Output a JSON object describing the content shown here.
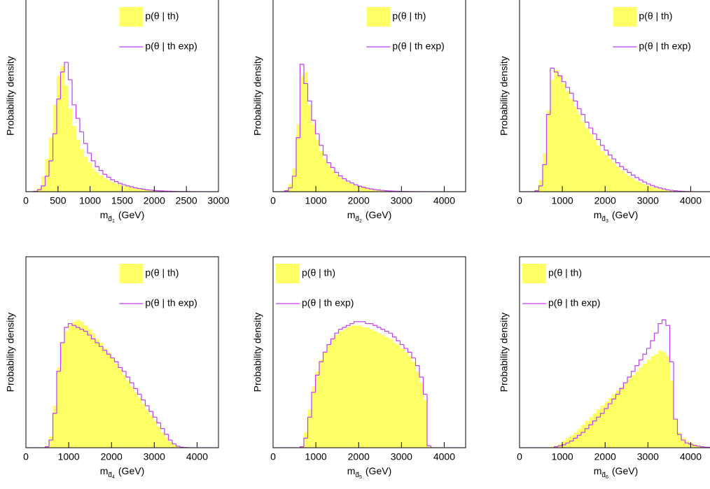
{
  "chart_data": [
    {
      "type": "histogram",
      "ylabel": "Probability density",
      "xlabel_symbol": "m",
      "xlabel_subscript": "d̃",
      "xlabel_index": "1",
      "xlabel_unit": "(GeV)",
      "legend": "upper right",
      "xlim": [
        0,
        3000
      ],
      "xticks": [
        0,
        500,
        1000,
        1500,
        2000,
        2500,
        3000
      ],
      "ylim": [
        0,
        100
      ],
      "bins": [
        0,
        60,
        120,
        180,
        240,
        300,
        360,
        420,
        480,
        540,
        600,
        660,
        720,
        780,
        840,
        900,
        960,
        1020,
        1080,
        1140,
        1200,
        1260,
        1320,
        1380,
        1440,
        1500,
        1560,
        1620,
        1680,
        1740,
        1800,
        1860,
        1920,
        1980,
        2040,
        2100,
        2160,
        2220,
        2280,
        2340,
        2400,
        2460,
        2520,
        2580,
        2640,
        2700,
        2760,
        2820,
        2880,
        2940,
        3000
      ],
      "series": [
        {
          "name": "p(θ | th)",
          "color": "#ffff66",
          "style": "filled",
          "values": [
            0,
            0,
            0.5,
            2,
            8,
            17,
            28,
            45,
            60,
            65,
            55,
            43,
            34,
            27,
            22,
            18,
            15,
            12,
            10,
            8.5,
            7,
            6,
            5,
            4.3,
            3.6,
            3,
            2.5,
            2.1,
            1.7,
            1.4,
            1.1,
            0.9,
            0.7,
            0.6,
            0.5,
            0.4,
            0.3,
            0.25,
            0.2,
            0.15,
            0.1,
            0.08,
            0.06,
            0.04,
            0.03,
            0.02,
            0.01,
            0,
            0,
            0
          ]
        },
        {
          "name": "p(θ | th exp)",
          "color": "#c23cf2",
          "style": "step",
          "values": [
            0,
            0,
            0.2,
            1,
            3,
            8,
            16,
            30,
            48,
            62,
            67,
            58,
            45,
            38,
            31,
            25,
            20,
            16,
            13,
            11,
            9,
            7.5,
            6.2,
            5.2,
            4.3,
            3.6,
            3,
            2.5,
            2,
            1.6,
            1.3,
            1,
            0.8,
            0.6,
            0.5,
            0.4,
            0.3,
            0.22,
            0.16,
            0.12,
            0.09,
            0.06,
            0.04,
            0.03,
            0.02,
            0.01,
            0,
            0,
            0,
            0
          ]
        }
      ]
    },
    {
      "type": "histogram",
      "ylabel": "Probability density",
      "xlabel_symbol": "m",
      "xlabel_subscript": "d̃",
      "xlabel_index": "2",
      "xlabel_unit": "(GeV)",
      "legend": "upper right",
      "xlim": [
        0,
        4500
      ],
      "xticks": [
        0,
        1000,
        2000,
        3000,
        4000
      ],
      "ylim": [
        0,
        100
      ],
      "bins": [
        0,
        90,
        180,
        270,
        360,
        450,
        540,
        630,
        720,
        810,
        900,
        990,
        1080,
        1170,
        1260,
        1350,
        1440,
        1530,
        1620,
        1710,
        1800,
        1890,
        1980,
        2070,
        2160,
        2250,
        2340,
        2430,
        2520,
        2610,
        2700,
        2790,
        2880,
        2970,
        3060,
        3150,
        3240,
        3330,
        3420,
        3510,
        3600,
        3690,
        3780,
        3870,
        3960,
        4050,
        4140,
        4230,
        4320,
        4410,
        4500
      ],
      "series": [
        {
          "name": "p(θ | th)",
          "color": "#ffff66",
          "style": "filled",
          "values": [
            0,
            0,
            0,
            1,
            4,
            12,
            35,
            60,
            62,
            45,
            35,
            27,
            21,
            17,
            14,
            11,
            9,
            7.5,
            6,
            5,
            4,
            3.2,
            2.6,
            2.1,
            1.7,
            1.3,
            1,
            0.8,
            0.6,
            0.45,
            0.35,
            0.25,
            0.2,
            0.15,
            0.1,
            0.07,
            0.05,
            0.03,
            0.02,
            0.01,
            0,
            0,
            0,
            0,
            0,
            0,
            0,
            0,
            0,
            0
          ]
        },
        {
          "name": "p(θ | th exp)",
          "color": "#c23cf2",
          "style": "step",
          "values": [
            0,
            0,
            0,
            0.5,
            2,
            8,
            28,
            66,
            56,
            47,
            37,
            30,
            24,
            19,
            15,
            12.5,
            10,
            8.2,
            6.7,
            5.5,
            4.5,
            3.6,
            2.9,
            2.3,
            1.8,
            1.4,
            1.1,
            0.85,
            0.65,
            0.5,
            0.38,
            0.28,
            0.2,
            0.15,
            0.1,
            0.07,
            0.05,
            0.03,
            0.02,
            0.01,
            0,
            0,
            0,
            0,
            0,
            0,
            0,
            0,
            0,
            0
          ]
        }
      ]
    },
    {
      "type": "histogram",
      "ylabel": "Probability density",
      "xlabel_symbol": "m",
      "xlabel_subscript": "d̃",
      "xlabel_index": "3",
      "xlabel_unit": "(GeV)",
      "legend": "upper right",
      "xlim": [
        0,
        4500
      ],
      "xticks": [
        0,
        1000,
        2000,
        3000,
        4000
      ],
      "ylim": [
        0,
        100
      ],
      "bins": [
        0,
        90,
        180,
        270,
        360,
        450,
        540,
        630,
        720,
        810,
        900,
        990,
        1080,
        1170,
        1260,
        1350,
        1440,
        1530,
        1620,
        1710,
        1800,
        1890,
        1980,
        2070,
        2160,
        2250,
        2340,
        2430,
        2520,
        2610,
        2700,
        2790,
        2880,
        2970,
        3060,
        3150,
        3240,
        3330,
        3420,
        3510,
        3600,
        3690,
        3780,
        3870,
        3960,
        4050,
        4140,
        4230,
        4320,
        4410,
        4500
      ],
      "series": [
        {
          "name": "p(θ | th)",
          "color": "#ffff66",
          "style": "filled",
          "values": [
            0,
            0,
            0,
            0,
            1,
            6,
            20,
            42,
            58,
            63,
            60,
            56,
            52,
            48,
            44,
            40,
            36,
            33,
            30,
            27,
            24,
            21,
            19,
            17,
            15,
            13,
            11,
            9.5,
            8,
            6.8,
            5.6,
            4.6,
            3.8,
            3,
            2.4,
            1.9,
            1.4,
            1,
            0.7,
            0.5,
            0.3,
            0.2,
            0.1,
            0.05,
            0,
            0,
            0,
            0,
            0,
            0
          ]
        },
        {
          "name": "p(θ | th exp)",
          "color": "#c23cf2",
          "style": "step",
          "values": [
            0,
            0,
            0,
            0,
            0.5,
            3,
            14,
            40,
            64,
            62,
            60,
            57,
            54,
            51,
            47,
            43,
            40,
            36,
            33,
            30,
            27,
            24,
            21.5,
            19,
            17,
            15,
            13,
            11.5,
            10,
            8.6,
            7.3,
            6.1,
            5,
            4,
            3.2,
            2.5,
            1.9,
            1.4,
            1,
            0.7,
            0.5,
            0.3,
            0.2,
            0.1,
            0.05,
            0,
            0,
            0,
            0,
            0
          ]
        }
      ]
    },
    {
      "type": "histogram",
      "ylabel": "Probability density",
      "xlabel_symbol": "m",
      "xlabel_subscript": "d̃",
      "xlabel_index": "4",
      "xlabel_unit": "(GeV)",
      "legend": "upper right",
      "xlim": [
        0,
        4500
      ],
      "xticks": [
        0,
        1000,
        2000,
        3000,
        4000
      ],
      "ylim": [
        0,
        100
      ],
      "bins": [
        0,
        90,
        180,
        270,
        360,
        450,
        540,
        630,
        720,
        810,
        900,
        990,
        1080,
        1170,
        1260,
        1350,
        1440,
        1530,
        1620,
        1710,
        1800,
        1890,
        1980,
        2070,
        2160,
        2250,
        2340,
        2430,
        2520,
        2610,
        2700,
        2790,
        2880,
        2970,
        3060,
        3150,
        3240,
        3330,
        3420,
        3510,
        3600,
        3690,
        3780,
        3870,
        3960,
        4050,
        4140,
        4230,
        4320,
        4410,
        4500
      ],
      "series": [
        {
          "name": "p(θ | th)",
          "color": "#ffff66",
          "style": "filled",
          "values": [
            0,
            0,
            0,
            0,
            0,
            1,
            6,
            22,
            42,
            55,
            61,
            64,
            66,
            67,
            66,
            64,
            62,
            60,
            57,
            55,
            52,
            50,
            47,
            44,
            41,
            38,
            35,
            32,
            29,
            26,
            23,
            20,
            17,
            14,
            11,
            8,
            5.5,
            3,
            1.5,
            0.6,
            0.2,
            0,
            0,
            0,
            0,
            0,
            0,
            0,
            0,
            0
          ]
        },
        {
          "name": "p(θ | th exp)",
          "color": "#c23cf2",
          "style": "step",
          "values": [
            0,
            0,
            0,
            0,
            0,
            0.5,
            4,
            18,
            40,
            55,
            63,
            65,
            64,
            63,
            62,
            61,
            59,
            57,
            55,
            53,
            51,
            49,
            47,
            45,
            42,
            40,
            37,
            34,
            31,
            28,
            25,
            22,
            19,
            16,
            13,
            10,
            7,
            4,
            2,
            0.8,
            0.3,
            0.1,
            0,
            0,
            0,
            0,
            0,
            0,
            0,
            0
          ]
        }
      ]
    },
    {
      "type": "histogram",
      "ylabel": "Probability density",
      "xlabel_symbol": "m",
      "xlabel_subscript": "d̃",
      "xlabel_index": "5",
      "xlabel_unit": "(GeV)",
      "legend": "upper left",
      "xlim": [
        0,
        4500
      ],
      "xticks": [
        0,
        1000,
        2000,
        3000,
        4000
      ],
      "ylim": [
        0,
        100
      ],
      "bins": [
        0,
        90,
        180,
        270,
        360,
        450,
        540,
        630,
        720,
        810,
        900,
        990,
        1080,
        1170,
        1260,
        1350,
        1440,
        1530,
        1620,
        1710,
        1800,
        1890,
        1980,
        2070,
        2160,
        2250,
        2340,
        2430,
        2520,
        2610,
        2700,
        2790,
        2880,
        2970,
        3060,
        3150,
        3240,
        3330,
        3420,
        3510,
        3600,
        3690,
        3780,
        3870,
        3960,
        4050,
        4140,
        4230,
        4320,
        4410,
        4500
      ],
      "series": [
        {
          "name": "p(θ | th)",
          "color": "#ffff66",
          "style": "filled",
          "values": [
            0,
            0,
            0,
            0,
            0,
            0,
            0,
            1,
            8,
            20,
            32,
            40,
            46,
            50,
            54,
            57,
            59,
            61,
            62,
            63,
            64,
            64,
            64,
            63,
            63,
            62,
            61,
            60,
            59,
            58,
            57,
            55,
            54,
            52,
            50,
            48,
            45,
            40,
            34,
            25,
            0.5,
            0,
            0,
            0,
            0,
            0,
            0,
            0,
            0,
            0
          ]
        },
        {
          "name": "p(θ | th exp)",
          "color": "#c23cf2",
          "style": "step",
          "values": [
            0,
            0,
            0,
            0,
            0,
            0,
            0,
            0.5,
            5,
            16,
            29,
            38,
            45,
            50,
            54,
            57,
            60,
            62,
            63,
            64,
            65,
            66,
            66,
            66,
            65,
            65,
            64,
            63,
            62,
            61,
            60,
            58,
            56,
            54,
            52,
            50,
            47,
            43,
            37,
            28,
            1,
            0,
            0,
            0,
            0,
            0,
            0,
            0,
            0,
            0
          ]
        }
      ]
    },
    {
      "type": "histogram",
      "ylabel": "Probability density",
      "xlabel_symbol": "m",
      "xlabel_subscript": "d̃",
      "xlabel_index": "6",
      "xlabel_unit": "(GeV)",
      "legend": "upper left",
      "xlim": [
        0,
        4500
      ],
      "xticks": [
        0,
        1000,
        2000,
        3000,
        4000
      ],
      "ylim": [
        0,
        100
      ],
      "bins": [
        0,
        90,
        180,
        270,
        360,
        450,
        540,
        630,
        720,
        810,
        900,
        990,
        1080,
        1170,
        1260,
        1350,
        1440,
        1530,
        1620,
        1710,
        1800,
        1890,
        1980,
        2070,
        2160,
        2250,
        2340,
        2430,
        2520,
        2610,
        2700,
        2790,
        2880,
        2970,
        3060,
        3150,
        3240,
        3330,
        3420,
        3510,
        3600,
        3690,
        3780,
        3870,
        3960,
        4050,
        4140,
        4230,
        4320,
        4410,
        4500
      ],
      "series": [
        {
          "name": "p(θ | th)",
          "color": "#ffff66",
          "style": "filled",
          "values": [
            0,
            0,
            0,
            0,
            0,
            0,
            0,
            0,
            0.5,
            1,
            2,
            3.5,
            5,
            6.5,
            8,
            10,
            12,
            14,
            16,
            18,
            20,
            22,
            24,
            26,
            28,
            30,
            32,
            34,
            36,
            38,
            40,
            42,
            44,
            46,
            48,
            49,
            51,
            50,
            48,
            35,
            15,
            8,
            5,
            3.5,
            2.5,
            1.8,
            1.2,
            0.8,
            0.4,
            0.2
          ]
        },
        {
          "name": "p(θ | th exp)",
          "color": "#c23cf2",
          "style": "step",
          "values": [
            0,
            0,
            0,
            0,
            0,
            0,
            0,
            0,
            0,
            0.5,
            1,
            1.5,
            2.5,
            3.5,
            5,
            6.5,
            8,
            10,
            12,
            14,
            16,
            18,
            20.5,
            23,
            25.5,
            28,
            31,
            34,
            37,
            40,
            43,
            46,
            49,
            52,
            56,
            60,
            65,
            67,
            64,
            45,
            15,
            7,
            4,
            2.5,
            1.8,
            1.2,
            0.8,
            0.5,
            0.3,
            0.2
          ]
        }
      ]
    }
  ]
}
